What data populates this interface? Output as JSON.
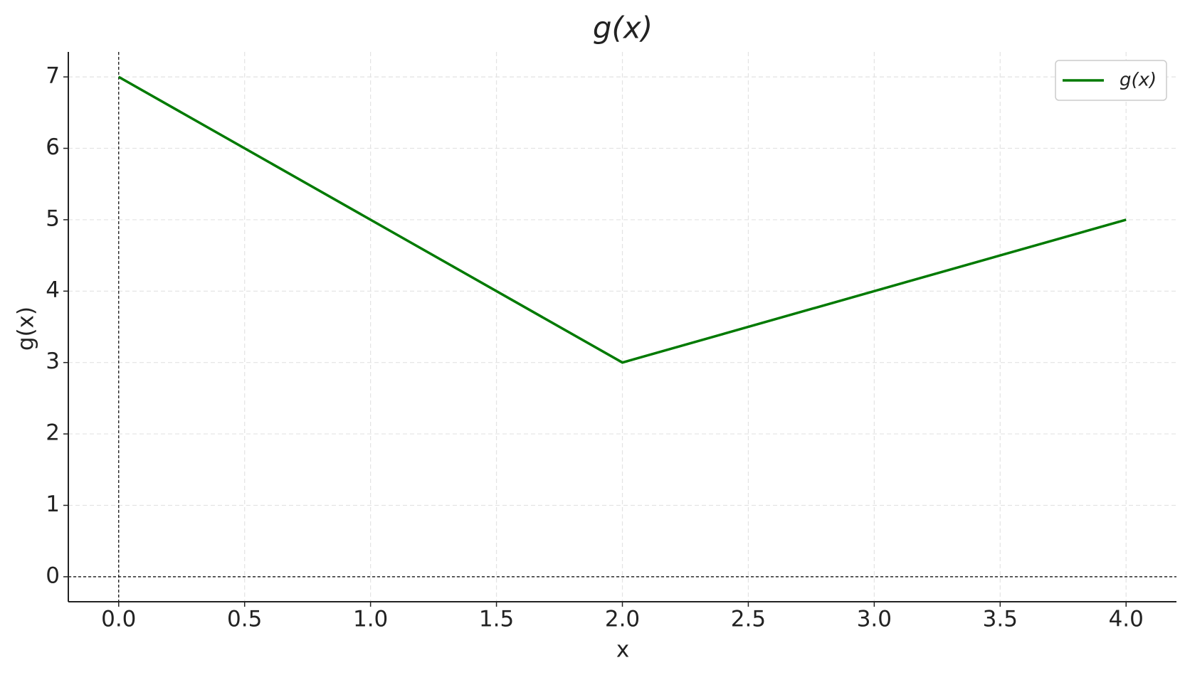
{
  "chart_data": {
    "type": "line",
    "title": "g(x)",
    "x_label": "x",
    "y_label": "g(x)",
    "x": [
      0,
      2,
      4
    ],
    "series": [
      {
        "name": "g(x)",
        "color": "#007a00",
        "values": [
          7,
          3,
          5
        ]
      }
    ],
    "xlim": [
      -0.2,
      4.2
    ],
    "xticks": [
      {
        "value": 0,
        "label": "0.0"
      },
      {
        "value": 0.5,
        "label": "0.5"
      },
      {
        "value": 1,
        "label": "1.0"
      },
      {
        "value": 1.5,
        "label": "1.5"
      },
      {
        "value": 2,
        "label": "2.0"
      },
      {
        "value": 2.5,
        "label": "2.5"
      },
      {
        "value": 3,
        "label": "3.0"
      },
      {
        "value": 3.5,
        "label": "3.5"
      },
      {
        "value": 4,
        "label": "4.0"
      }
    ],
    "ylim": [
      -0.35,
      7.35
    ],
    "yticks": [
      0,
      1,
      2,
      3,
      4,
      5,
      6,
      7
    ],
    "grid": true,
    "legend": "upper right"
  }
}
